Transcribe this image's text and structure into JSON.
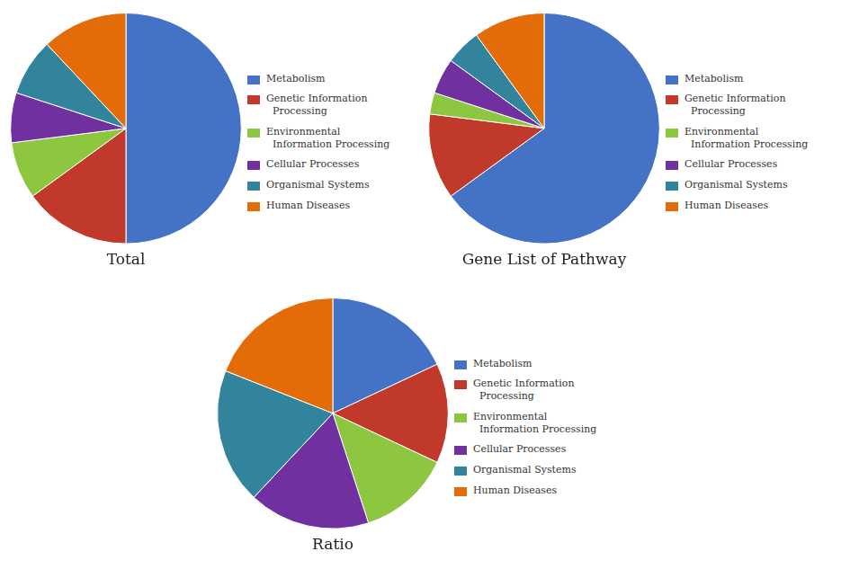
{
  "chart_data": [
    {
      "type": "pie",
      "title": "Total",
      "categories": [
        "Metabolism",
        "Genetic Information\n  Processing",
        "Environmental\n  Information Processing",
        "Cellular Processes",
        "Organismal Systems",
        "Human Diseases"
      ],
      "values": [
        50,
        15,
        8,
        7,
        8,
        12
      ],
      "colors": [
        "#4472C4",
        "#C0392B",
        "#8DC63F",
        "#7030A0",
        "#31849B",
        "#E36C09"
      ],
      "legend": "right"
    },
    {
      "type": "pie",
      "title": "Gene List of Pathway",
      "categories": [
        "Metabolism",
        "Genetic Information\n  Processing",
        "Environmental\n  Information Processing",
        "Cellular Processes",
        "Organismal Systems",
        "Human Diseases"
      ],
      "values": [
        65,
        12,
        3,
        5,
        5,
        10
      ],
      "colors": [
        "#4472C4",
        "#C0392B",
        "#8DC63F",
        "#7030A0",
        "#31849B",
        "#E36C09"
      ],
      "legend": "right"
    },
    {
      "type": "pie",
      "title": "Ratio",
      "categories": [
        "Metabolism",
        "Genetic Information\n  Processing",
        "Environmental\n  Information Processing",
        "Cellular Processes",
        "Organismal Systems",
        "Human Diseases"
      ],
      "values": [
        18,
        14,
        13,
        17,
        19,
        19
      ],
      "colors": [
        "#4472C4",
        "#C0392B",
        "#8DC63F",
        "#7030A0",
        "#31849B",
        "#E36C09"
      ],
      "legend": "right"
    }
  ]
}
